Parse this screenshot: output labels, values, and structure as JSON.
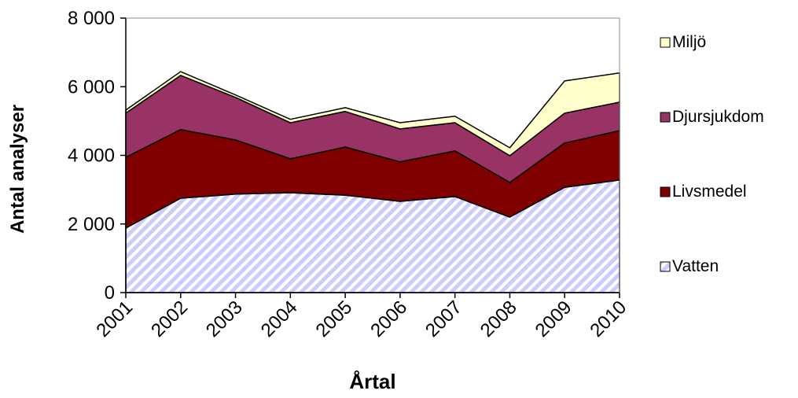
{
  "chart_data": {
    "type": "stacked-area",
    "x_label": "Årtal",
    "y_label": "Antal analyser",
    "categories": [
      "2001",
      "2002",
      "2003",
      "2004",
      "2005",
      "2006",
      "2007",
      "2008",
      "2009",
      "2010"
    ],
    "series": [
      {
        "name": "Vatten",
        "color": "#ccccff",
        "values": [
          1880,
          2750,
          2870,
          2910,
          2840,
          2660,
          2800,
          2200,
          3070,
          3280
        ]
      },
      {
        "name": "Livsmedel",
        "color": "#800000",
        "values": [
          2065,
          2000,
          1580,
          990,
          1400,
          1150,
          1330,
          1010,
          1290,
          1440
        ]
      },
      {
        "name": "Djursjukdom",
        "color": "#993366",
        "values": [
          1285,
          1580,
          1240,
          1050,
          1040,
          960,
          820,
          780,
          870,
          830
        ]
      },
      {
        "name": "Miljö",
        "color": "#ffffcc",
        "values": [
          90,
          110,
          70,
          100,
          110,
          180,
          190,
          230,
          940,
          850
        ]
      }
    ],
    "ylim": [
      0,
      8000
    ],
    "yticks": [
      0,
      {
        "value": 2000,
        "label": "2 000"
      },
      {
        "value": 4000,
        "label": "4 000"
      },
      {
        "value": 6000,
        "label": "6 000"
      },
      {
        "value": 8000,
        "label": "8 000"
      }
    ],
    "legend": "right"
  }
}
